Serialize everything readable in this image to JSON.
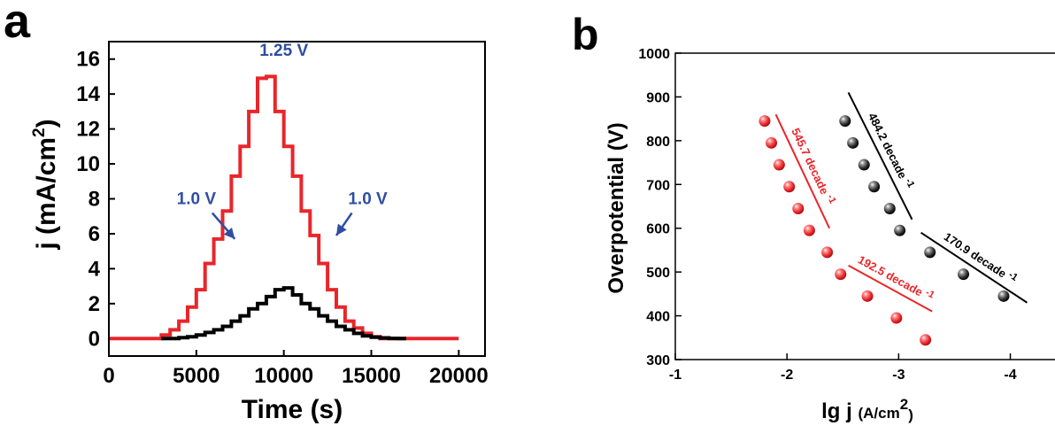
{
  "chart_data": [
    {
      "panel": "a",
      "type": "line",
      "title": "",
      "xlabel": "Time (s)",
      "ylabel": "j (mA/cm",
      "ylabel_sup": "2",
      "ylabel_close": ")",
      "xlim": [
        0,
        21500
      ],
      "ylim": [
        -1,
        17
      ],
      "xticks": [
        0,
        5000,
        10000,
        15000,
        20000
      ],
      "yticks": [
        0,
        2,
        4,
        6,
        8,
        10,
        12,
        14,
        16
      ],
      "grid": false,
      "colors": {
        "red": "#e8262a",
        "black": "#000000",
        "annotation": "#2f4ea3"
      },
      "series": [
        {
          "color": "#e8262a",
          "x": [
            0,
            3000,
            3000,
            3500,
            3500,
            4000,
            4000,
            4500,
            4500,
            5000,
            5000,
            5500,
            5500,
            6000,
            6000,
            6500,
            6500,
            7000,
            7000,
            7500,
            7500,
            8000,
            8000,
            8500,
            8500,
            9000,
            9000,
            9500,
            9500,
            10000,
            10000,
            10500,
            10500,
            11000,
            11000,
            11500,
            11500,
            12000,
            12000,
            12500,
            12500,
            13000,
            13000,
            13500,
            13500,
            14000,
            14000,
            14500,
            14500,
            15000,
            15000,
            15500,
            15500,
            16000,
            16000,
            16500,
            16500,
            17000,
            17000,
            20000
          ],
          "y": [
            0,
            0,
            0.2,
            0.2,
            0.5,
            0.5,
            1.0,
            1.0,
            1.8,
            1.8,
            2.8,
            2.8,
            4.3,
            4.3,
            5.7,
            5.7,
            7.3,
            7.3,
            9.3,
            9.3,
            11.0,
            11.0,
            13.0,
            13.0,
            14.9,
            14.9,
            15.0,
            15.0,
            13.0,
            13.0,
            11.0,
            11.0,
            9.3,
            9.3,
            7.3,
            7.3,
            5.9,
            5.9,
            4.3,
            4.3,
            2.8,
            2.8,
            1.8,
            1.8,
            1.0,
            1.0,
            0.6,
            0.6,
            0.3,
            0.3,
            0.1,
            0.1,
            0,
            0,
            0,
            0,
            0,
            0,
            0,
            0
          ]
        },
        {
          "color": "#000000",
          "x": [
            3000,
            4000,
            4000,
            4500,
            4500,
            5000,
            5000,
            5500,
            5500,
            6000,
            6000,
            6500,
            6500,
            7000,
            7000,
            7500,
            7500,
            8000,
            8000,
            8500,
            8500,
            9000,
            9000,
            9500,
            9500,
            10000,
            10000,
            10500,
            10500,
            11000,
            11000,
            11500,
            11500,
            12000,
            12000,
            12500,
            12500,
            13000,
            13000,
            13500,
            13500,
            14000,
            14000,
            14500,
            14500,
            15000,
            15000,
            15500,
            15500,
            16000,
            16000,
            16500,
            16500,
            17000
          ],
          "y": [
            0,
            0,
            0.05,
            0.05,
            0.1,
            0.1,
            0.2,
            0.2,
            0.35,
            0.35,
            0.5,
            0.5,
            0.7,
            0.7,
            1.0,
            1.0,
            1.3,
            1.3,
            1.7,
            1.7,
            2.0,
            2.0,
            2.4,
            2.4,
            2.8,
            2.8,
            2.9,
            2.9,
            2.5,
            2.5,
            2.0,
            2.0,
            1.7,
            1.7,
            1.3,
            1.3,
            1.0,
            1.0,
            0.7,
            0.7,
            0.5,
            0.5,
            0.3,
            0.3,
            0.15,
            0.15,
            0.08,
            0.08,
            0.04,
            0.04,
            0.01,
            0.01,
            0,
            0
          ]
        }
      ],
      "annotations": [
        {
          "text": "1.25 V",
          "x": 10000,
          "y": 16.2,
          "arrow": false
        },
        {
          "text": "1.0 V",
          "x": 5000,
          "y": 7.7,
          "arrow": true,
          "arrow_to": [
            7200,
            5.7
          ]
        },
        {
          "text": "1.0 V",
          "x": 14800,
          "y": 7.7,
          "arrow": true,
          "arrow_to": [
            13000,
            5.9
          ]
        }
      ]
    },
    {
      "panel": "b",
      "type": "scatter",
      "title": "",
      "xlabel": "lg j ",
      "xlabel_unit": "(A/cm",
      "xlabel_sup": "2",
      "xlabel_close": ")",
      "ylabel": "Overpotential (V)",
      "xlim": [
        -1,
        -4.4
      ],
      "ylim": [
        300,
        1000
      ],
      "xticks": [
        -1,
        -2,
        -3,
        -4
      ],
      "yticks": [
        300,
        400,
        500,
        600,
        700,
        800,
        900,
        1000
      ],
      "grid": false,
      "series": [
        {
          "color": "#e8262a",
          "points": [
            [
              -1.8,
              845
            ],
            [
              -1.86,
              795
            ],
            [
              -1.93,
              745
            ],
            [
              -2.02,
              695
            ],
            [
              -2.1,
              645
            ],
            [
              -2.2,
              595
            ],
            [
              -2.36,
              545
            ],
            [
              -2.48,
              495
            ],
            [
              -2.72,
              445
            ],
            [
              -2.98,
              395
            ],
            [
              -3.24,
              345
            ]
          ]
        },
        {
          "color": "#000000",
          "points": [
            [
              -2.52,
              845
            ],
            [
              -2.59,
              795
            ],
            [
              -2.69,
              745
            ],
            [
              -2.78,
              695
            ],
            [
              -2.92,
              645
            ],
            [
              -3.01,
              595
            ],
            [
              -3.28,
              545
            ],
            [
              -3.58,
              495
            ],
            [
              -3.94,
              445
            ]
          ]
        }
      ],
      "fits": [
        {
          "label": "545.7 decade ",
          "label_sup": "-1",
          "color": "#e8262a",
          "from": [
            -1.9,
            860
          ],
          "to": [
            -2.38,
            600
          ]
        },
        {
          "label": "192.5 decade ",
          "label_sup": "-1",
          "color": "#e8262a",
          "from": [
            -2.55,
            515
          ],
          "to": [
            -3.3,
            410
          ]
        },
        {
          "label": "484.2 decade ",
          "label_sup": "-1",
          "color": "#000000",
          "from": [
            -2.55,
            910
          ],
          "to": [
            -3.12,
            620
          ]
        },
        {
          "label": "170.9 decade ",
          "label_sup": "-1",
          "color": "#000000",
          "from": [
            -3.2,
            590
          ],
          "to": [
            -4.15,
            430
          ]
        }
      ]
    }
  ],
  "labels": {
    "panel_a": "a",
    "panel_b": "b"
  }
}
